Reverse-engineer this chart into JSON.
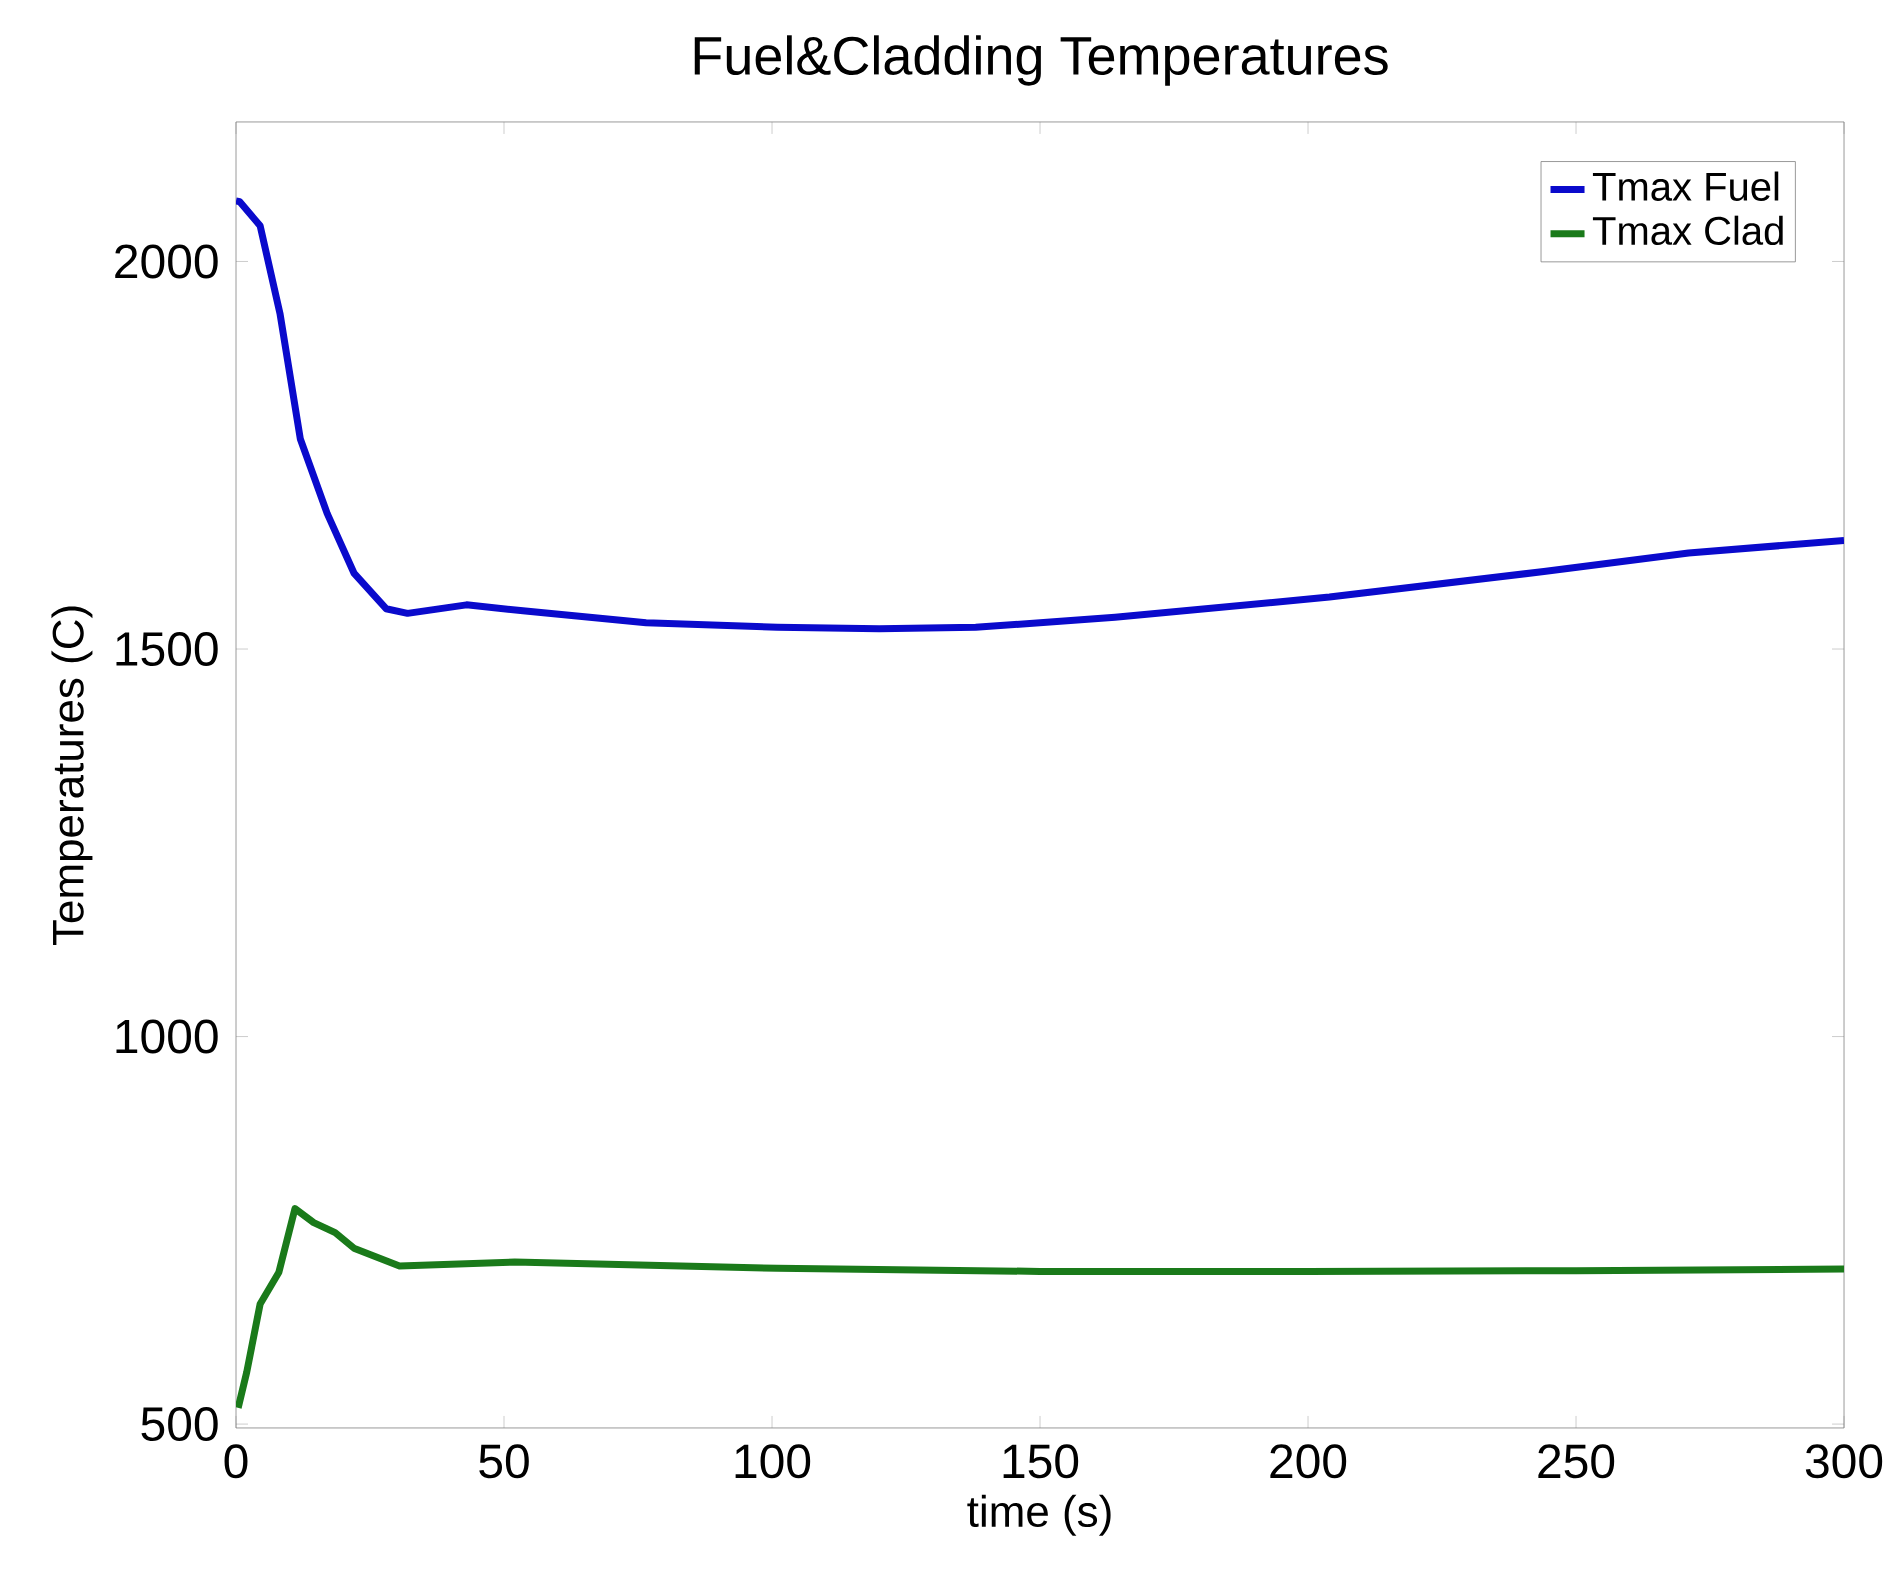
{
  "chart_data": {
    "type": "line",
    "title": "Fuel&Cladding Temperatures",
    "xlabel": "time (s)",
    "ylabel": "Temperatures (C)",
    "xlim": [
      0,
      300
    ],
    "ylim": [
      495,
      2180
    ],
    "xticks": [
      0,
      50,
      100,
      150,
      200,
      250,
      300
    ],
    "yticks": [
      500,
      1000,
      1500,
      2000
    ],
    "grid": false,
    "legend": "top right",
    "marker": "none",
    "line_style": "solid",
    "series": [
      {
        "name": "Tmax Fuel",
        "color": "#0a0acc",
        "x": [
          0,
          0.7,
          4.5,
          8.2,
          12,
          17,
          22,
          28,
          32,
          43,
          54,
          76.5,
          101,
          120,
          138,
          164,
          204,
          244,
          271,
          300
        ],
        "values": [
          2078,
          2077,
          2046,
          1933,
          1771,
          1675,
          1598,
          1552,
          1546,
          1557,
          1549,
          1534,
          1528,
          1526,
          1528,
          1541,
          1567,
          1600,
          1624,
          1640
        ]
      },
      {
        "name": "Tmax Clad",
        "color": "#1a7a1a",
        "x": [
          0.4,
          2,
          4.5,
          8,
          11,
          14.5,
          18.5,
          22,
          30.5,
          52,
          101,
          150,
          200,
          250,
          300
        ],
        "values": [
          521,
          567,
          655,
          696,
          778,
          760,
          747,
          727,
          704,
          709,
          701,
          697,
          697,
          698,
          700
        ]
      }
    ]
  }
}
